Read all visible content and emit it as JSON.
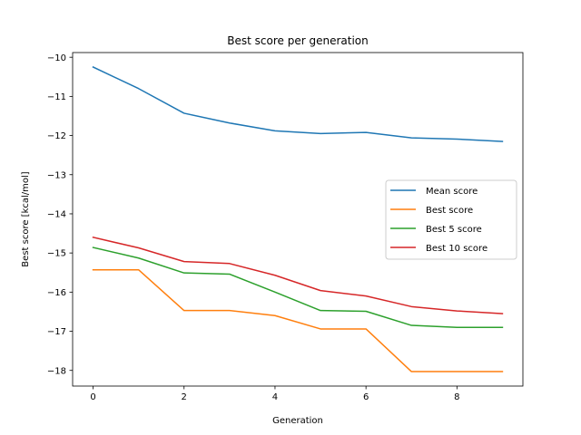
{
  "chart_data": {
    "type": "line",
    "title": "Best score per generation",
    "xlabel": "Generation",
    "ylabel": "Best score [kcal/mol]",
    "x": [
      0,
      1,
      2,
      3,
      4,
      5,
      6,
      7,
      8,
      9
    ],
    "xlim": [
      -0.45,
      9.45
    ],
    "ylim": [
      -18.4,
      -9.88
    ],
    "xticks": [
      0,
      2,
      4,
      6,
      8
    ],
    "yticks": [
      -10,
      -11,
      -12,
      -13,
      -14,
      -15,
      -16,
      -17,
      -18
    ],
    "xtick_labels": [
      "0",
      "2",
      "4",
      "6",
      "8"
    ],
    "ytick_labels": [
      "−10",
      "−11",
      "−12",
      "−13",
      "−14",
      "−15",
      "−16",
      "−17",
      "−18"
    ],
    "grid": false,
    "legend_position": "center-right",
    "series": [
      {
        "name": "Mean score",
        "color": "#1f77b4",
        "values": [
          -10.25,
          -10.8,
          -11.43,
          -11.68,
          -11.88,
          -11.95,
          -11.92,
          -12.06,
          -12.09,
          -12.15
        ]
      },
      {
        "name": "Best score",
        "color": "#ff7f0e",
        "values": [
          -15.43,
          -15.43,
          -16.47,
          -16.47,
          -16.6,
          -16.94,
          -16.94,
          -18.03,
          -18.03,
          -18.03
        ]
      },
      {
        "name": "Best 5 score",
        "color": "#2ca02c",
        "values": [
          -14.86,
          -15.13,
          -15.51,
          -15.54,
          -16.0,
          -16.47,
          -16.49,
          -16.85,
          -16.9,
          -16.9
        ]
      },
      {
        "name": "Best 10 score",
        "color": "#d62728",
        "values": [
          -14.6,
          -14.87,
          -15.22,
          -15.27,
          -15.57,
          -15.96,
          -16.1,
          -16.37,
          -16.48,
          -16.55
        ]
      }
    ]
  }
}
